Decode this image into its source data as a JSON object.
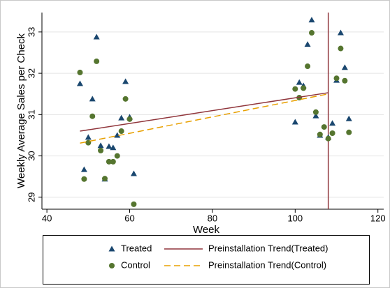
{
  "chart_data": {
    "type": "scatter",
    "xlabel": "Week",
    "ylabel": "Weekly Average Sales per Check",
    "xlim": [
      38.8,
      121.4
    ],
    "xticks": [
      40,
      60,
      80,
      100,
      120
    ],
    "ylim": [
      28.71,
      33.47
    ],
    "yticks": [
      29,
      30,
      31,
      32,
      33
    ],
    "grid": true,
    "vline": {
      "value": 108,
      "color": "#90353b"
    },
    "series": [
      {
        "name": "Treated",
        "kind": "scatter",
        "marker": "triangle",
        "color": "#1a476f",
        "x": [
          48,
          49,
          50,
          51,
          52,
          53,
          54,
          55,
          56,
          57,
          58,
          59,
          60,
          61,
          100,
          101,
          102,
          103,
          104,
          105,
          106,
          108,
          109,
          110,
          111,
          112,
          113
        ],
        "values": [
          31.75,
          29.67,
          30.45,
          31.38,
          32.88,
          30.25,
          29.44,
          30.23,
          30.2,
          30.5,
          30.92,
          31.8,
          30.94,
          29.57,
          30.82,
          31.78,
          31.7,
          32.7,
          33.29,
          30.97,
          30.5,
          30.45,
          30.79,
          31.83,
          32.98,
          32.14,
          30.9
        ]
      },
      {
        "name": "Control",
        "kind": "scatter",
        "marker": "circle",
        "color": "#55752f",
        "x": [
          48,
          49,
          50,
          51,
          52,
          53,
          54,
          55,
          56,
          57,
          58,
          59,
          60,
          61,
          100,
          101,
          102,
          103,
          104,
          105,
          106,
          107,
          108,
          109,
          110,
          111,
          112,
          113
        ],
        "values": [
          32.02,
          29.44,
          30.32,
          30.96,
          32.29,
          30.13,
          29.45,
          29.86,
          29.86,
          30.0,
          30.6,
          31.38,
          30.89,
          28.83,
          31.62,
          31.41,
          31.64,
          32.17,
          32.98,
          31.06,
          30.52,
          30.7,
          30.42,
          30.55,
          31.88,
          32.6,
          31.82,
          30.57
        ]
      },
      {
        "name": "Preinstallation Trend(Treated)",
        "kind": "line",
        "dash": false,
        "color": "#90353b",
        "x": [
          48,
          108
        ],
        "values": [
          30.6,
          31.53
        ]
      },
      {
        "name": "Preinstallation Trend(Control)",
        "kind": "line",
        "dash": true,
        "color": "#e8a000",
        "x": [
          48,
          108
        ],
        "values": [
          30.31,
          31.5
        ]
      }
    ]
  }
}
